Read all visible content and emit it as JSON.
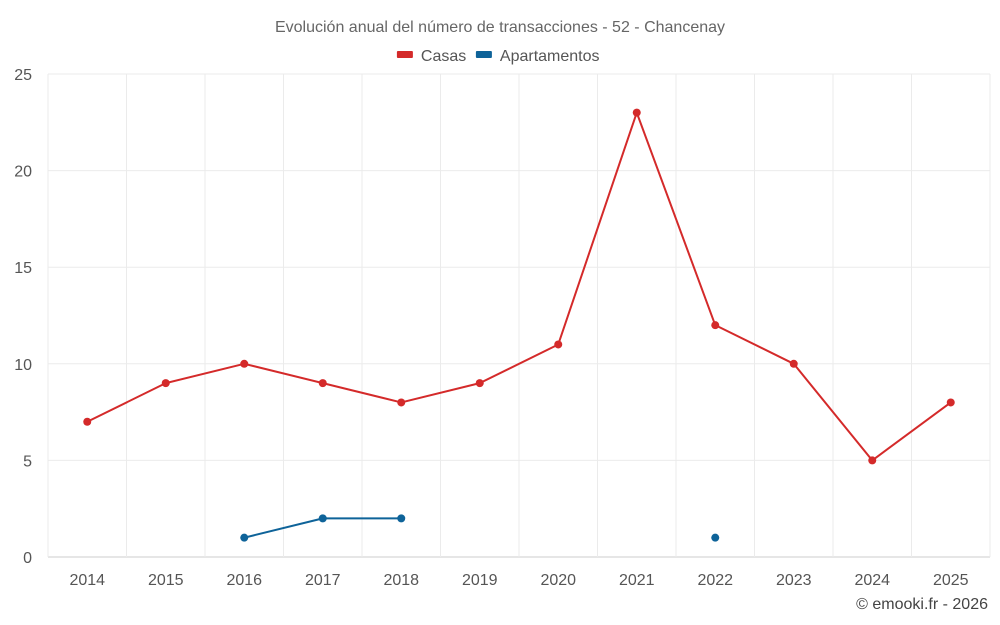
{
  "chart_data": {
    "type": "line",
    "title": "Evolución anual del número de transacciones - 52 - Chancenay",
    "categories": [
      "2014",
      "2015",
      "2016",
      "2017",
      "2018",
      "2019",
      "2020",
      "2021",
      "2022",
      "2023",
      "2024",
      "2025"
    ],
    "series": [
      {
        "name": "Casas",
        "color": "#d42a2a",
        "values": [
          7,
          9,
          10,
          9,
          8,
          9,
          11,
          23,
          12,
          10,
          5,
          8
        ]
      },
      {
        "name": "Apartamentos",
        "color": "#0e6399",
        "values": [
          null,
          null,
          1,
          2,
          2,
          null,
          null,
          null,
          1,
          null,
          null,
          null
        ]
      }
    ],
    "ylim": [
      0,
      25
    ],
    "yticks": [
      0,
      5,
      10,
      15,
      20,
      25
    ],
    "grid": true,
    "legend": "top-center",
    "credit": "© emooki.fr - 2026"
  }
}
